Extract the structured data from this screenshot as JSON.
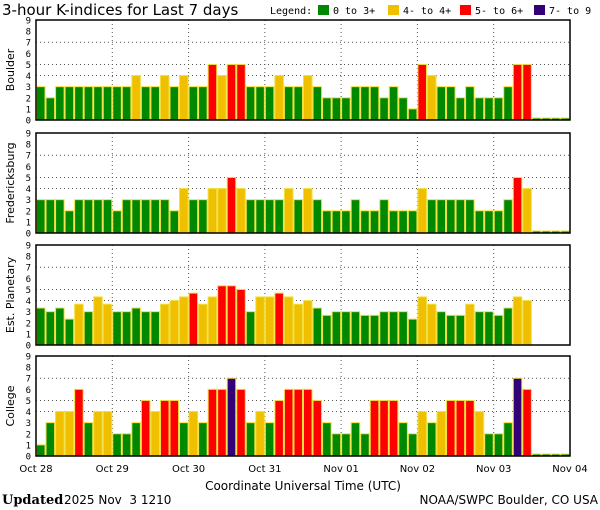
{
  "chart_data": {
    "type": "bar",
    "title": "3-hour K-indices for Last 7 days",
    "legend": {
      "label": "Legend:",
      "placement": "top-right",
      "entries": [
        {
          "label": "0 to 3+",
          "color": "#008800"
        },
        {
          "label": "4- to 4+",
          "color": "#f0c000"
        },
        {
          "label": "5- to 6+",
          "color": "#ff0000"
        },
        {
          "label": "7- to 9",
          "color": "#330077"
        }
      ]
    },
    "xlabel": "Coordinate Universal Time (UTC)",
    "x_tick_labels": [
      "Oct 28",
      "Oct 29",
      "Oct 30",
      "Oct 31",
      "Nov 01",
      "Nov 02",
      "Nov 03",
      "Nov 04"
    ],
    "y_tick_labels": [
      "0",
      "1",
      "2",
      "3",
      "4",
      "5",
      "6",
      "7",
      "8",
      "9"
    ],
    "ylim": [
      0,
      9
    ],
    "grid": {
      "horizontal_at": [
        4,
        5,
        7
      ],
      "vertical_at_day_boundaries": true,
      "style": "dotted"
    },
    "bar_interval_hours": 3,
    "panels": [
      {
        "name": "Boulder",
        "values": [
          3,
          2,
          3,
          3,
          3,
          3,
          3,
          3,
          3,
          3,
          4,
          3,
          3,
          4,
          3,
          4,
          3,
          3,
          5,
          4,
          5,
          5,
          3,
          3,
          3,
          4,
          3,
          3,
          4,
          3,
          2,
          2,
          2,
          3,
          3,
          3,
          2,
          3,
          2,
          1,
          5,
          4,
          3,
          3,
          2,
          3,
          2,
          2,
          2,
          3,
          5,
          5,
          0,
          0,
          0,
          0
        ]
      },
      {
        "name": "Fredericksburg",
        "values": [
          3,
          3,
          3,
          2,
          3,
          3,
          3,
          3,
          2,
          3,
          3,
          3,
          3,
          3,
          2,
          4,
          3,
          3,
          4,
          4,
          5,
          4,
          3,
          3,
          3,
          3,
          4,
          3,
          4,
          3,
          2,
          2,
          2,
          3,
          2,
          2,
          3,
          2,
          2,
          2,
          4,
          3,
          3,
          3,
          3,
          3,
          2,
          2,
          2,
          3,
          5,
          4,
          0,
          0,
          0,
          0
        ]
      },
      {
        "name": "Est. Planetary",
        "values": [
          3.33,
          3,
          3.33,
          2.33,
          3.67,
          3,
          4.33,
          3.67,
          3,
          3,
          3.33,
          3,
          3,
          3.67,
          4,
          4.33,
          4.67,
          3.67,
          4.33,
          5.33,
          5.33,
          5,
          3,
          4.33,
          4.33,
          4.67,
          4.33,
          3.67,
          4,
          3.33,
          2.67,
          3,
          3,
          3,
          2.67,
          2.67,
          3,
          3,
          3,
          2.33,
          4.33,
          3.67,
          3,
          2.67,
          2.67,
          3.67,
          3,
          3,
          2.67,
          3.33,
          4.33,
          4
        ]
      },
      {
        "name": "College",
        "values": [
          1,
          3,
          4,
          4,
          6,
          3,
          4,
          4,
          2,
          2,
          3,
          5,
          4,
          5,
          5,
          3,
          4,
          3,
          6,
          6,
          7,
          6,
          3,
          4,
          3,
          5,
          6,
          6,
          6,
          5,
          3,
          2,
          2,
          3,
          2,
          5,
          5,
          5,
          3,
          2,
          4,
          3,
          4,
          5,
          5,
          5,
          4,
          2,
          2,
          3,
          7,
          6,
          0,
          0,
          0,
          0
        ]
      }
    ]
  },
  "footer": {
    "updated_label": "Updated",
    "updated_value": "2025 Nov  3 1210",
    "credit": "NOAA/SWPC Boulder, CO USA"
  }
}
